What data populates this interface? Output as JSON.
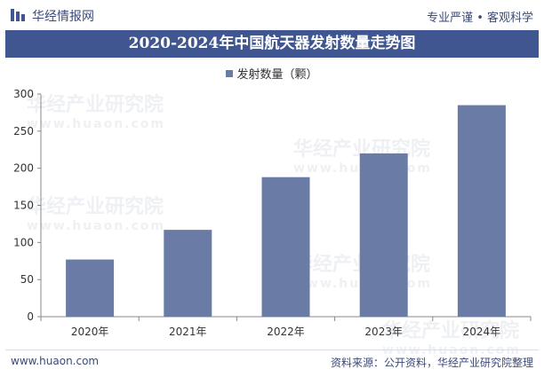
{
  "header": {
    "brand": "华经情报网",
    "tagline": "专业严谨 • 客观科学"
  },
  "chart_data": {
    "type": "bar",
    "title": "2020-2024年中国航天器发射数量走势图",
    "categories": [
      "2020年",
      "2021年",
      "2022年",
      "2023年",
      "2024年"
    ],
    "series": [
      {
        "name": "发射数量（颗）",
        "values": [
          77,
          117,
          188,
          220,
          285
        ]
      }
    ],
    "ylim": [
      0,
      300
    ],
    "yticks": [
      0,
      50,
      100,
      150,
      200,
      250,
      300
    ],
    "xlabel": "",
    "ylabel": "",
    "grid": false,
    "legend": "top-center",
    "colors": {
      "bar": "#6a7ba6",
      "axis": "#888888",
      "title_bg": "#3f5690"
    }
  },
  "watermark": {
    "cn": "华经产业研究院",
    "en": "www.huaon.com"
  },
  "footer": {
    "website": "www.huaon.com",
    "source": "资料来源：公开资料，华经产业研究院整理"
  }
}
